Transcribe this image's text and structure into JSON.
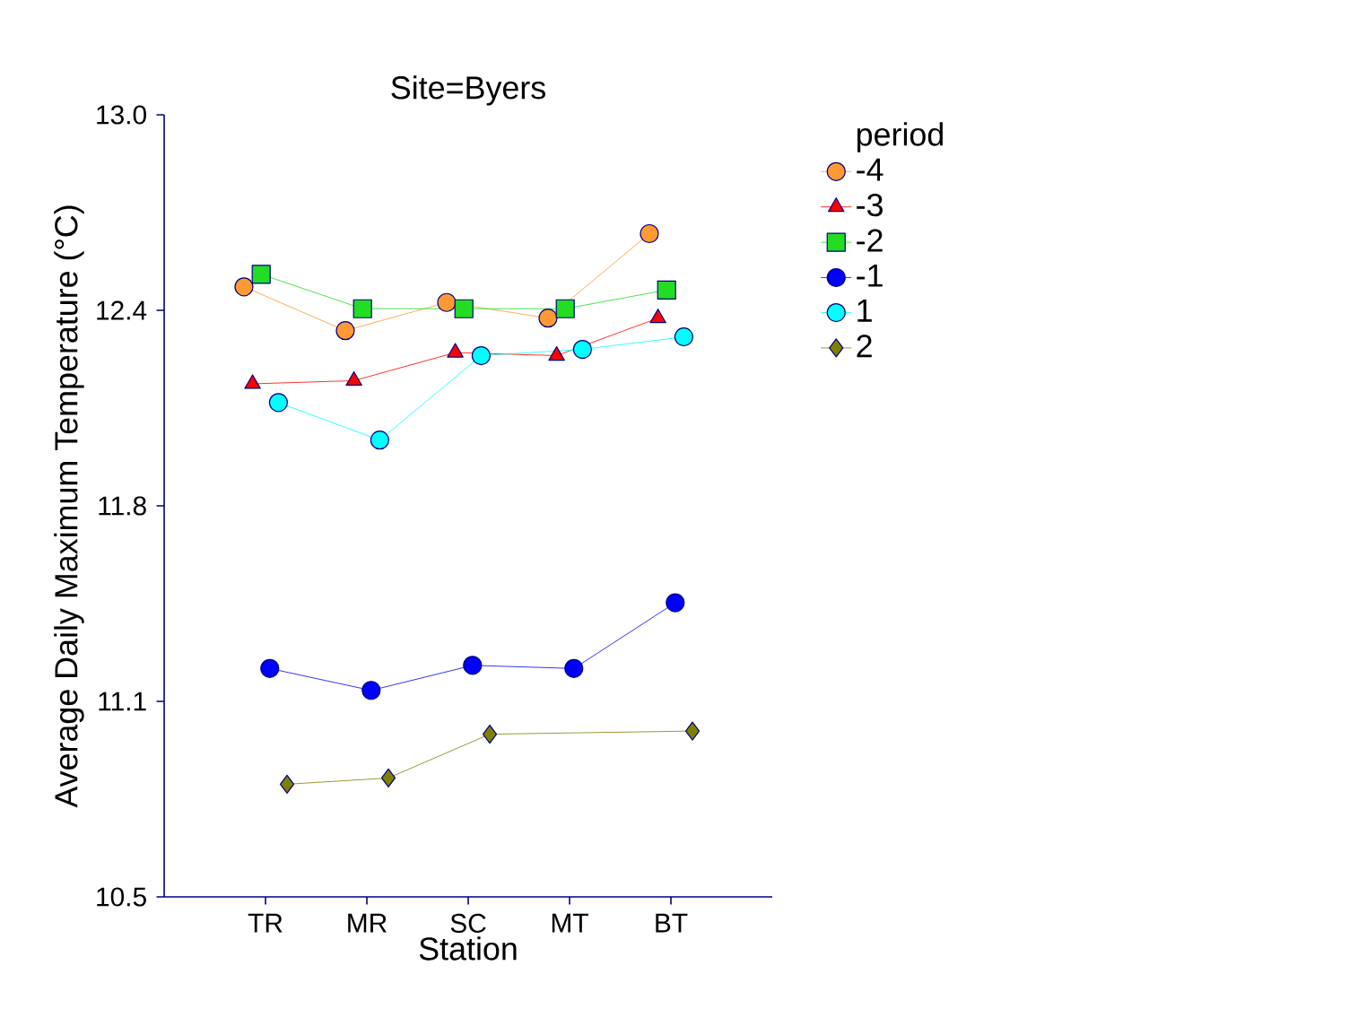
{
  "chart_data": {
    "type": "line",
    "title": "Site=Byers",
    "xlabel": "Station",
    "ylabel": "Average Daily Maximum Temperature (°C)",
    "legend_title": "period",
    "legend": "top right",
    "categories": [
      "TR",
      "MR",
      "SC",
      "MT",
      "BT"
    ],
    "ylim": [
      10.5,
      13.0
    ],
    "yticks": [
      {
        "value": 10.5,
        "label": "10.5"
      },
      {
        "value": 11.125,
        "label": "11.1"
      },
      {
        "value": 11.75,
        "label": "11.8"
      },
      {
        "value": 12.375,
        "label": "12.4"
      },
      {
        "value": 13.0,
        "label": "13.0"
      }
    ],
    "line_style": "solid",
    "series": [
      {
        "name": "-4",
        "color": "#ff9933",
        "marker": "circle",
        "values": [
          12.45,
          12.31,
          12.4,
          12.35,
          12.62
        ]
      },
      {
        "name": "-3",
        "color": "#ff0000",
        "marker": "triangle",
        "values": [
          12.14,
          12.15,
          12.24,
          12.23,
          12.35
        ]
      },
      {
        "name": "-2",
        "color": "#22dd22",
        "marker": "square",
        "values": [
          12.49,
          12.38,
          12.38,
          12.38,
          12.44
        ]
      },
      {
        "name": "-1",
        "color": "#0000ff",
        "marker": "circle",
        "values": [
          11.23,
          11.16,
          11.24,
          11.23,
          11.44
        ]
      },
      {
        "name": "1",
        "color": "#00ffff",
        "marker": "circle",
        "values": [
          12.08,
          11.96,
          12.23,
          12.25,
          12.29
        ]
      },
      {
        "name": "2",
        "color": "#808000",
        "marker": "diamond",
        "values": [
          10.86,
          10.88,
          11.02,
          null,
          11.03
        ]
      }
    ]
  }
}
